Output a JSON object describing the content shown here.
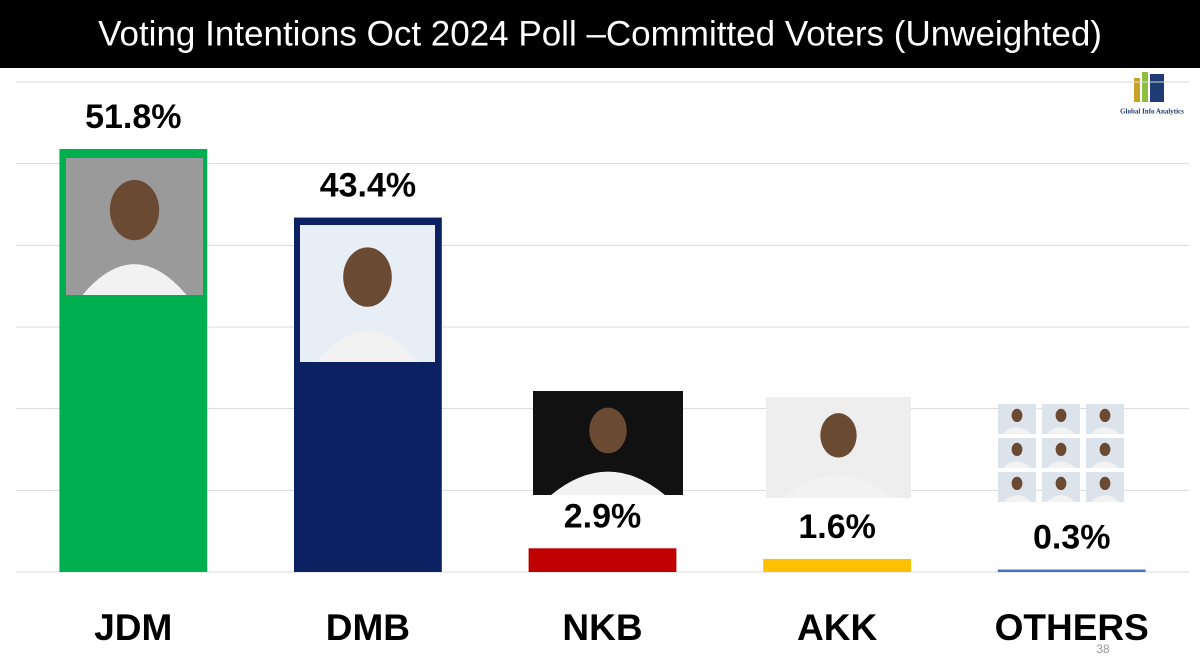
{
  "chart_data": {
    "type": "bar",
    "title": "Voting Intentions Oct 2024 Poll –Committed Voters (Unweighted)",
    "categories": [
      "JDM",
      "DMB",
      "NKB",
      "AKK",
      "OTHERS"
    ],
    "values": [
      51.8,
      43.4,
      2.9,
      1.6,
      0.3
    ],
    "value_labels": [
      "51.8%",
      "43.4%",
      "2.9%",
      "1.6%",
      "0.3%"
    ],
    "colors": [
      "#00b050",
      "#0b2161",
      "#c00000",
      "#ffc000",
      "#4472c4"
    ],
    "ylim": [
      0,
      60
    ],
    "yticks": [
      0,
      10,
      20,
      30,
      40,
      50,
      60
    ],
    "grid": true,
    "logo_text": "Global Info Analytics",
    "page_number": "38"
  }
}
